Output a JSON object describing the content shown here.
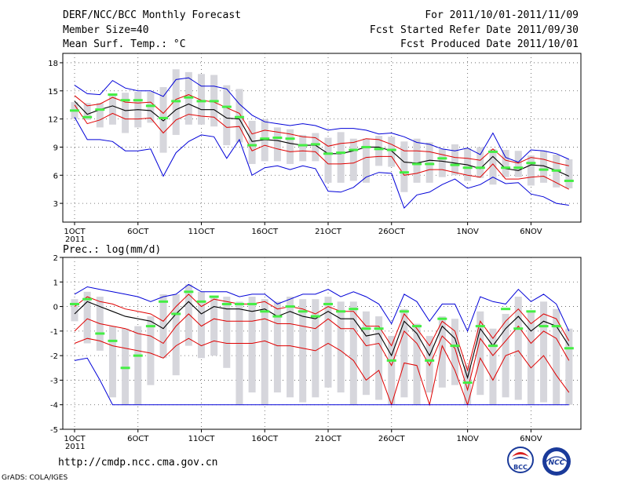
{
  "header": {
    "title": "DERF/NCC/BCC Monthly Forecast",
    "member_size": "Member Size=40",
    "variable": "Mean Surf. Temp.: °C",
    "period": "For 2011/10/01-2011/11/09",
    "started": "Fcst Started Refer Date 2011/09/30",
    "produced": "Fcst Produced Date 2011/10/01"
  },
  "footer": {
    "url": "http://cmdp.ncc.cma.gov.cn",
    "credit": "GrADS: COLA/IGES",
    "logo_bcc_text": "BCC",
    "logo_ncc_text": "NCC"
  },
  "colors": {
    "mean": "#000000",
    "inner_band": "#e00000",
    "outer_band": "#0000d8",
    "obs": "#44ee44",
    "box": "#d6d6dc",
    "grid": "#555555"
  },
  "chart_data": [
    {
      "type": "line",
      "title": "Mean Surf. Temp.: °C",
      "xlabel": "",
      "ylabel": "°C",
      "ylim": [
        1,
        19
      ],
      "yticks": [
        3,
        6,
        9,
        12,
        15,
        18
      ],
      "x_tick_days": [
        1,
        6,
        11,
        16,
        21,
        26,
        32,
        37
      ],
      "x_tick_labels": [
        "1OCT",
        "6OCT",
        "11OCT",
        "16OCT",
        "21OCT",
        "26OCT",
        "1NOV",
        "6NOV"
      ],
      "x_sub_label": "2011",
      "days": [
        1,
        2,
        3,
        4,
        5,
        6,
        7,
        8,
        9,
        10,
        11,
        12,
        13,
        14,
        15,
        16,
        17,
        18,
        19,
        20,
        21,
        22,
        23,
        24,
        25,
        26,
        27,
        28,
        29,
        30,
        31,
        32,
        33,
        34,
        35,
        36,
        37,
        38,
        39,
        40
      ],
      "series": [
        {
          "name": "ensemble max",
          "role": "outer_band",
          "values": [
            15.6,
            14.7,
            14.6,
            16.1,
            15.3,
            15.0,
            15.0,
            14.4,
            16.2,
            16.4,
            15.5,
            15.5,
            15.2,
            13.6,
            12.4,
            11.7,
            11.5,
            11.3,
            11.5,
            11.3,
            10.8,
            11.0,
            11.0,
            10.8,
            10.4,
            10.5,
            10.1,
            9.5,
            9.3,
            8.8,
            8.6,
            8.9,
            8.2,
            10.5,
            7.9,
            7.4,
            8.7,
            8.6,
            8.3,
            7.7
          ]
        },
        {
          "name": "upper spread",
          "role": "inner_band",
          "values": [
            14.5,
            13.4,
            13.6,
            14.3,
            13.8,
            13.7,
            13.8,
            12.6,
            14.1,
            14.6,
            14.0,
            13.8,
            13.2,
            12.6,
            10.4,
            10.8,
            10.6,
            10.4,
            10.1,
            10.0,
            9.1,
            9.4,
            9.5,
            9.9,
            9.8,
            9.3,
            8.6,
            8.6,
            8.5,
            8.2,
            7.9,
            7.8,
            7.6,
            8.8,
            7.6,
            7.3,
            7.9,
            7.7,
            7.3,
            7.0
          ]
        },
        {
          "name": "ensemble mean",
          "role": "mean",
          "values": [
            13.9,
            12.5,
            13.0,
            13.4,
            12.9,
            13.0,
            12.9,
            11.8,
            13.0,
            13.6,
            13.0,
            13.0,
            12.1,
            12.0,
            9.6,
            9.8,
            9.7,
            9.4,
            9.2,
            9.2,
            8.3,
            8.3,
            8.6,
            9.0,
            9.0,
            8.6,
            7.4,
            7.3,
            7.6,
            7.5,
            7.3,
            7.1,
            6.7,
            8.0,
            6.7,
            6.5,
            7.1,
            7.0,
            6.5,
            5.9
          ]
        },
        {
          "name": "lower spread",
          "role": "inner_band",
          "values": [
            13.5,
            11.5,
            11.9,
            12.6,
            12.0,
            12.0,
            12.1,
            10.5,
            11.9,
            12.5,
            12.3,
            12.2,
            11.1,
            11.2,
            8.6,
            9.2,
            8.8,
            8.5,
            8.6,
            8.5,
            7.2,
            7.2,
            7.3,
            7.9,
            8.0,
            8.0,
            6.0,
            6.2,
            6.6,
            6.6,
            6.3,
            6.0,
            5.8,
            7.2,
            5.6,
            5.6,
            5.8,
            5.9,
            5.2,
            4.5
          ]
        },
        {
          "name": "ensemble min",
          "role": "outer_band",
          "values": [
            12.2,
            9.8,
            9.8,
            9.6,
            8.6,
            8.6,
            8.8,
            5.9,
            8.4,
            9.6,
            10.3,
            10.1,
            7.8,
            9.8,
            6.0,
            6.8,
            7.0,
            6.6,
            7.0,
            6.7,
            4.3,
            4.2,
            4.7,
            5.8,
            6.3,
            6.2,
            2.5,
            3.9,
            4.2,
            5.0,
            5.6,
            4.6,
            5.0,
            5.8,
            5.1,
            5.2,
            4.0,
            3.7,
            3.0,
            2.8
          ]
        },
        {
          "name": "observed",
          "role": "obs",
          "values": [
            12.9,
            12.2,
            13.0,
            14.6,
            14.0,
            14.0,
            13.4,
            12.1,
            13.9,
            14.3,
            13.9,
            13.9,
            13.3,
            12.2,
            9.2,
            9.9,
            10.0,
            9.9,
            9.2,
            9.3,
            8.3,
            8.4,
            8.7,
            9.0,
            8.8,
            8.7,
            6.3,
            7.2,
            7.2,
            7.8,
            7.1,
            6.8,
            6.8,
            8.5,
            6.8,
            6.8,
            7.3,
            6.6,
            6.5,
            5.4
          ]
        },
        {
          "name": "box top",
          "role": "box",
          "values": [
            13.8,
            13.7,
            13.7,
            14.5,
            14.8,
            14.9,
            14.9,
            15.4,
            17.3,
            17.0,
            16.8,
            16.7,
            15.6,
            15.2,
            11.8,
            12.0,
            11.1,
            10.9,
            10.3,
            10.5,
            10.0,
            10.6,
            9.9,
            9.9,
            10.2,
            10.1,
            9.6,
            9.9,
            9.5,
            8.8,
            9.3,
            8.9,
            9.0,
            8.8,
            8.7,
            8.6,
            8.1,
            8.6,
            8.2,
            7.7
          ]
        },
        {
          "name": "box bottom",
          "role": "box",
          "values": [
            12.0,
            11.9,
            11.1,
            11.4,
            10.5,
            11.1,
            11.6,
            8.4,
            10.3,
            11.4,
            11.4,
            11.2,
            9.2,
            9.5,
            7.2,
            7.5,
            7.5,
            7.2,
            7.5,
            7.5,
            5.2,
            5.2,
            5.4,
            5.2,
            7.0,
            6.9,
            4.2,
            5.2,
            5.2,
            5.8,
            6.0,
            5.4,
            5.7,
            5.0,
            5.8,
            5.8,
            4.9,
            5.2,
            4.7,
            4.6
          ]
        }
      ]
    },
    {
      "type": "line",
      "title": "Prec.: log(mm/d)",
      "xlabel": "",
      "ylabel": "log(mm/d)",
      "ylim": [
        -5,
        2
      ],
      "yticks": [
        -5,
        -4,
        -3,
        -2,
        -1,
        0,
        1,
        2
      ],
      "x_tick_days": [
        1,
        6,
        11,
        16,
        21,
        26,
        32,
        37
      ],
      "x_tick_labels": [
        "1OCT",
        "6OCT",
        "11OCT",
        "16OCT",
        "21OCT",
        "26OCT",
        "1NOV",
        "6NOV"
      ],
      "x_sub_label": "2011",
      "days": [
        1,
        2,
        3,
        4,
        5,
        6,
        7,
        8,
        9,
        10,
        11,
        12,
        13,
        14,
        15,
        16,
        17,
        18,
        19,
        20,
        21,
        22,
        23,
        24,
        25,
        26,
        27,
        28,
        29,
        30,
        31,
        32,
        33,
        34,
        35,
        36,
        37,
        38,
        39,
        40
      ],
      "series": [
        {
          "name": "ensemble max",
          "role": "outer_band",
          "values": [
            0.5,
            0.8,
            0.7,
            0.6,
            0.5,
            0.4,
            0.2,
            0.4,
            0.5,
            0.9,
            0.6,
            0.6,
            0.6,
            0.4,
            0.5,
            0.5,
            0.1,
            0.3,
            0.5,
            0.5,
            0.7,
            0.4,
            0.6,
            0.4,
            0.1,
            -0.7,
            0.5,
            0.2,
            -0.6,
            0.1,
            0.1,
            -1.0,
            0.4,
            0.2,
            0.1,
            0.7,
            0.2,
            0.5,
            0.1,
            -1.0
          ]
        },
        {
          "name": "upper spread",
          "role": "inner_band",
          "values": [
            0.0,
            0.4,
            0.2,
            0.1,
            -0.1,
            -0.2,
            -0.3,
            -0.6,
            0.0,
            0.5,
            0.0,
            0.3,
            0.2,
            0.1,
            0.1,
            0.2,
            -0.1,
            0.0,
            -0.1,
            -0.3,
            0.0,
            -0.2,
            -0.2,
            -0.8,
            -0.8,
            -1.6,
            -0.3,
            -0.9,
            -1.6,
            -0.6,
            -1.0,
            -2.6,
            -0.6,
            -1.3,
            -0.6,
            -0.1,
            -0.7,
            -0.3,
            -0.5,
            -1.4
          ]
        },
        {
          "name": "ensemble mean",
          "role": "mean",
          "values": [
            -0.3,
            0.2,
            0.0,
            -0.2,
            -0.4,
            -0.5,
            -0.6,
            -0.9,
            -0.3,
            0.2,
            -0.3,
            0.0,
            -0.1,
            -0.1,
            -0.2,
            -0.1,
            -0.4,
            -0.2,
            -0.4,
            -0.5,
            -0.2,
            -0.5,
            -0.5,
            -1.2,
            -1.1,
            -2.0,
            -0.6,
            -1.1,
            -2.0,
            -0.8,
            -1.3,
            -2.9,
            -0.9,
            -1.6,
            -0.9,
            -0.4,
            -1.0,
            -0.6,
            -0.8,
            -1.6
          ]
        },
        {
          "name": "lower spread",
          "role": "inner_band",
          "values": [
            -1.0,
            -0.5,
            -0.7,
            -0.8,
            -0.9,
            -1.1,
            -1.2,
            -1.5,
            -0.8,
            -0.3,
            -0.8,
            -0.5,
            -0.6,
            -0.6,
            -0.6,
            -0.5,
            -0.7,
            -0.7,
            -0.8,
            -0.9,
            -0.5,
            -0.9,
            -0.9,
            -1.6,
            -1.5,
            -2.4,
            -1.0,
            -1.5,
            -2.4,
            -1.2,
            -1.7,
            -3.4,
            -1.3,
            -2.0,
            -1.4,
            -0.8,
            -1.5,
            -1.0,
            -1.3,
            -2.2
          ]
        },
        {
          "name": "ensemble min (lower red)",
          "role": "inner_band",
          "values": [
            -1.5,
            -1.3,
            -1.4,
            -1.6,
            -1.7,
            -1.8,
            -1.9,
            -2.1,
            -1.6,
            -1.3,
            -1.6,
            -1.4,
            -1.5,
            -1.5,
            -1.5,
            -1.4,
            -1.6,
            -1.6,
            -1.7,
            -1.8,
            -1.5,
            -1.8,
            -2.2,
            -3.0,
            -2.6,
            -4.0,
            -2.3,
            -2.4,
            -4.0,
            -1.6,
            -2.6,
            -4.0,
            -2.1,
            -3.0,
            -2.0,
            -1.8,
            -2.5,
            -2.0,
            -2.8,
            -3.5
          ]
        },
        {
          "name": "floor",
          "role": "outer_band",
          "values": [
            -2.2,
            -2.1,
            -3.0,
            -4.0,
            -4.0,
            -4.0,
            -4.0,
            -4.0,
            -4.0,
            -4.0,
            -4.0,
            -4.0,
            -4.0,
            -4.0,
            -4.0,
            -4.0,
            -4.0,
            -4.0,
            -4.0,
            -4.0,
            -4.0,
            -4.0,
            -4.0,
            -4.0,
            -4.0,
            -4.0,
            -4.0,
            -4.0,
            -4.0,
            -4.0,
            -4.0,
            -4.0,
            -4.0,
            -4.0,
            -4.0,
            -4.0,
            -4.0,
            -4.0,
            -4.0,
            -4.0
          ]
        },
        {
          "name": "observed",
          "role": "obs",
          "values": [
            0.1,
            0.3,
            -1.1,
            -1.4,
            -2.5,
            -2.0,
            -0.8,
            0.2,
            -0.3,
            0.6,
            0.2,
            0.4,
            0.1,
            0.1,
            0.1,
            -0.2,
            -0.4,
            0.0,
            -0.2,
            -0.4,
            0.1,
            -0.2,
            -0.1,
            -0.9,
            -0.9,
            -2.2,
            -0.2,
            -0.8,
            -2.2,
            -0.5,
            -1.6,
            -3.1,
            -0.8,
            -1.6,
            -0.1,
            -0.9,
            -0.2,
            -0.8,
            -0.8,
            -1.7
          ]
        },
        {
          "name": "box top",
          "role": "box",
          "values": [
            0.3,
            0.6,
            0.4,
            -0.8,
            -0.9,
            -0.8,
            -0.4,
            0.5,
            0.5,
            0.9,
            0.6,
            0.4,
            0.4,
            0.2,
            0.4,
            0.3,
            0.2,
            0.4,
            0.3,
            0.3,
            0.4,
            0.2,
            0.2,
            -0.2,
            -0.4,
            -1.2,
            -0.1,
            -0.7,
            -1.2,
            -0.4,
            -0.5,
            -2.4,
            -0.2,
            -0.9,
            -0.3,
            0.4,
            -0.2,
            0.2,
            -0.1,
            -0.9
          ]
        },
        {
          "name": "box bottom",
          "role": "box",
          "values": [
            -0.6,
            -1.5,
            -1.8,
            -3.7,
            -4.0,
            -4.0,
            -3.2,
            -2.1,
            -2.8,
            -1.6,
            -2.1,
            -2.0,
            -2.5,
            -4.0,
            -3.5,
            -4.0,
            -3.5,
            -3.7,
            -3.9,
            -3.7,
            -3.3,
            -3.5,
            -4.0,
            -3.6,
            -3.8,
            -4.0,
            -3.7,
            -4.0,
            -3.5,
            -3.3,
            -3.2,
            -4.0,
            -3.6,
            -4.0,
            -3.7,
            -3.8,
            -4.0,
            -3.9,
            -4.0,
            -4.0
          ]
        }
      ]
    }
  ]
}
